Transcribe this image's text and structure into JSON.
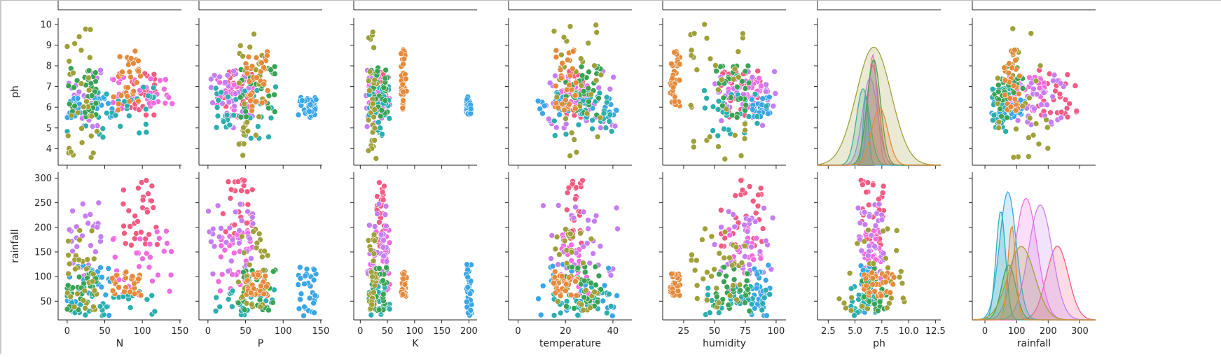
{
  "chart_data": {
    "type": "scatter",
    "columns": [
      "N",
      "P",
      "K",
      "temperature",
      "humidity",
      "ph",
      "rainfall"
    ],
    "row_labels": [
      "ph",
      "rainfall"
    ],
    "x_ticks": {
      "N": [
        0,
        50,
        100,
        150
      ],
      "P": [
        0,
        50,
        100,
        150
      ],
      "K": [
        0,
        50,
        100,
        150,
        200
      ],
      "temperature": [
        0,
        20,
        40
      ],
      "humidity": [
        25,
        50,
        75,
        100
      ],
      "ph": [
        2.5,
        5.0,
        7.5,
        10.0,
        12.5
      ],
      "rainfall": [
        0,
        100,
        200,
        300
      ]
    },
    "x_tick_labels": {
      "N": [
        "0",
        "50",
        "100",
        "150"
      ],
      "P": [
        "0",
        "50",
        "100",
        "150"
      ],
      "K": [
        "0",
        "50",
        "100",
        "150",
        "200"
      ],
      "temperature": [
        "0",
        "20",
        "40"
      ],
      "humidity": [
        "25",
        "50",
        "75",
        "100"
      ],
      "ph": [
        "2.5",
        "5.0",
        "7.5",
        "10.0",
        "12.5"
      ],
      "rainfall": [
        "0",
        "100",
        "200",
        "300"
      ]
    },
    "xlim": {
      "N": [
        -12,
        152
      ],
      "P": [
        -12,
        152
      ],
      "K": [
        -12,
        215
      ],
      "temperature": [
        -4,
        48
      ],
      "humidity": [
        8,
        108
      ],
      "ph": [
        1.5,
        13.0
      ],
      "rainfall": [
        -40,
        350
      ]
    },
    "y_ticks": {
      "ph": [
        4,
        5,
        6,
        7,
        8,
        9,
        10
      ],
      "rainfall": [
        50,
        100,
        150,
        200,
        250,
        300
      ]
    },
    "ylim": {
      "ph": [
        3.2,
        10.3
      ],
      "rainfall": [
        12,
        312
      ]
    },
    "palette": [
      "#f8766d",
      "#e58700",
      "#c99800",
      "#a3a500",
      "#6bb100",
      "#00ba38",
      "#00bf7d",
      "#00c0af",
      "#00bcd8",
      "#00b0f6",
      "#619cff",
      "#b983ff",
      "#e76bf3",
      "#fd61d1"
    ],
    "series": [
      {
        "color": "#f25b83",
        "N": [
          70,
          120
        ],
        "P": [
          20,
          60
        ],
        "K": [
          30,
          45
        ],
        "temperature": [
          20,
          28
        ],
        "humidity": [
          55,
          90
        ],
        "ph": [
          5.5,
          7.8
        ],
        "rainfall": [
          160,
          298
        ]
      },
      {
        "color": "#f26be0",
        "N": [
          60,
          140
        ],
        "P": [
          10,
          60
        ],
        "K": [
          15,
          55
        ],
        "temperature": [
          18,
          30
        ],
        "humidity": [
          60,
          90
        ],
        "ph": [
          5.8,
          7.5
        ],
        "rainfall": [
          60,
          200
        ]
      },
      {
        "color": "#c57ef2",
        "N": [
          0,
          45
        ],
        "P": [
          0,
          60
        ],
        "K": [
          10,
          50
        ],
        "temperature": [
          10,
          42
        ],
        "humidity": [
          50,
          100
        ],
        "ph": [
          5.0,
          7.8
        ],
        "rainfall": [
          100,
          250
        ]
      },
      {
        "color": "#39a6e8",
        "N": [
          0,
          60
        ],
        "P": [
          120,
          145
        ],
        "K": [
          195,
          205
        ],
        "temperature": [
          8,
          42
        ],
        "humidity": [
          80,
          95
        ],
        "ph": [
          5.5,
          6.5
        ],
        "rainfall": [
          20,
          125
        ]
      },
      {
        "color": "#2bafae",
        "N": [
          0,
          120
        ],
        "P": [
          10,
          90
        ],
        "K": [
          15,
          55
        ],
        "temperature": [
          15,
          40
        ],
        "humidity": [
          40,
          95
        ],
        "ph": [
          4.5,
          7.0
        ],
        "rainfall": [
          20,
          80
        ]
      },
      {
        "color": "#39a354",
        "N": [
          0,
          40
        ],
        "P": [
          40,
          90
        ],
        "K": [
          20,
          50
        ],
        "temperature": [
          20,
          35
        ],
        "humidity": [
          50,
          80
        ],
        "ph": [
          5.5,
          8.0
        ],
        "rainfall": [
          30,
          120
        ]
      },
      {
        "color": "#a0a03a",
        "N": [
          0,
          40
        ],
        "P": [
          40,
          80
        ],
        "K": [
          15,
          30
        ],
        "temperature": [
          15,
          35
        ],
        "humidity": [
          30,
          75
        ],
        "ph": [
          3.5,
          10.0
        ],
        "rainfall": [
          30,
          200
        ]
      },
      {
        "color": "#e58a3a",
        "N": [
          60,
          100
        ],
        "P": [
          50,
          80
        ],
        "K": [
          75,
          85
        ],
        "temperature": [
          15,
          25
        ],
        "humidity": [
          14,
          22
        ],
        "ph": [
          5.8,
          8.8
        ],
        "rainfall": [
          60,
          110
        ]
      }
    ]
  }
}
